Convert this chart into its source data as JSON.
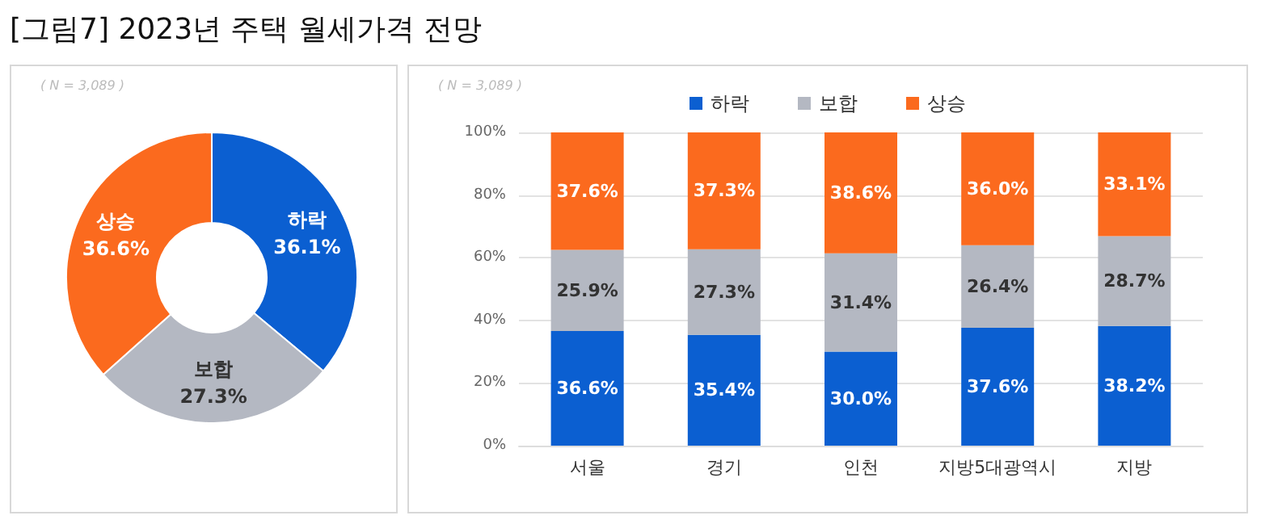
{
  "chart_data": [
    {
      "type": "donut",
      "title": "[그림7] 2023년 주택 월세가격 전망",
      "annotations": [
        "( N = 3,089 )"
      ],
      "categories": [
        "하락",
        "보합",
        "상승"
      ],
      "values": [
        36.1,
        27.3,
        36.6
      ],
      "value_labels": [
        "36.1%",
        "27.3%",
        "36.6%"
      ],
      "colors": [
        "#0b5fd1",
        "#b4b8c2",
        "#fb6a1e"
      ]
    },
    {
      "type": "bar",
      "stacked": true,
      "annotations": [
        "( N = 3,089 )"
      ],
      "categories": [
        "서울",
        "경기",
        "인천",
        "지방5대광역시",
        "지방"
      ],
      "series": [
        {
          "name": "하락",
          "color": "#0b5fd1",
          "values": [
            36.6,
            35.4,
            30.0,
            37.6,
            38.2
          ],
          "value_labels": [
            "36.6%",
            "35.4%",
            "30.0%",
            "37.6%",
            "38.2%"
          ]
        },
        {
          "name": "보합",
          "color": "#b4b8c2",
          "values": [
            25.9,
            27.3,
            31.4,
            26.4,
            28.7
          ],
          "value_labels": [
            "25.9%",
            "27.3%",
            "31.4%",
            "26.4%",
            "28.7%"
          ]
        },
        {
          "name": "상승",
          "color": "#fb6a1e",
          "values": [
            37.6,
            37.3,
            38.6,
            36.0,
            33.1
          ],
          "value_labels": [
            "37.6%",
            "37.3%",
            "38.6%",
            "36.0%",
            "33.1%"
          ]
        }
      ],
      "ylim": [
        0,
        100
      ],
      "yticks": [
        {
          "value": 0,
          "label": "0%"
        },
        {
          "value": 20,
          "label": "20%"
        },
        {
          "value": 40,
          "label": "40%"
        },
        {
          "value": 60,
          "label": "60%"
        },
        {
          "value": 80,
          "label": "80%"
        },
        {
          "value": 100,
          "label": "100%"
        }
      ],
      "grid": "y",
      "legend": "top"
    }
  ]
}
